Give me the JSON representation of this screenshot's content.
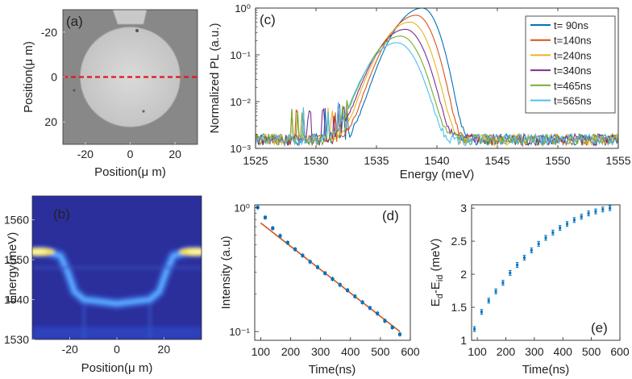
{
  "colors": {
    "axis": "#262626",
    "dashed_line": "#e8141b",
    "fit_line": "#d95319",
    "marker": "#0072bd",
    "micro_bg": "#8a8a8a",
    "micro_disk": "#d0d0d0",
    "heat_bg": "#2a2f9a",
    "heat_band": "#5aa8ff",
    "heat_peak": "#f5e33a"
  },
  "chart_data": [
    {
      "id": "a",
      "type": "image",
      "panel_label": "(a)",
      "title": "",
      "xlabel": "Position(μ m)",
      "ylabel": "Position(μ m)",
      "xlim": [
        -30,
        30
      ],
      "ylim": [
        -30,
        30
      ],
      "xticks": [
        "-20",
        "0",
        "20"
      ],
      "yticks": [
        "-20",
        "0",
        "20"
      ],
      "annotation": "dashed line at position 0",
      "disk_center": [
        0,
        0
      ],
      "disk_radius": 22
    },
    {
      "id": "b",
      "type": "heatmap",
      "panel_label": "(b)",
      "xlabel": "Position(μ m)",
      "ylabel": "Energy(meV)",
      "xlim": [
        -36,
        36
      ],
      "ylim": [
        1530,
        1566
      ],
      "xticks": [
        "-20",
        "0",
        "20"
      ],
      "yticks": [
        "1530",
        "1540",
        "1550",
        "1560"
      ],
      "ridge": {
        "positions": [
          -36,
          -30,
          -24,
          -21,
          -18,
          -14,
          0,
          14,
          18,
          21,
          24,
          30,
          36
        ],
        "energies": [
          1552,
          1552,
          1551,
          1547,
          1542,
          1540,
          1539,
          1540,
          1542,
          1547,
          1551,
          1552,
          1552
        ]
      }
    },
    {
      "id": "c",
      "type": "line",
      "panel_label": "(c)",
      "xlabel": "Energy (meV)",
      "ylabel": "Normalized PL (a.u.)",
      "yscale": "log",
      "xlim": [
        1525,
        1555
      ],
      "ylim": [
        0.001,
        1
      ],
      "xticks": [
        "1525",
        "1530",
        "1535",
        "1540",
        "1545",
        "1550",
        "1555"
      ],
      "yticks": [
        "10⁰",
        "10⁻¹",
        "10⁻²",
        "10⁻³"
      ],
      "legend_position": "top-right",
      "series": [
        {
          "name": "t= 90ns",
          "color": "#0072bd",
          "peak_energy": 1538.8,
          "peak_value": 1.0
        },
        {
          "name": "t=140ns",
          "color": "#d95319",
          "peak_energy": 1538.3,
          "peak_value": 0.7
        },
        {
          "name": "t=240ns",
          "color": "#edb120",
          "peak_energy": 1537.8,
          "peak_value": 0.5
        },
        {
          "name": "t=340ns",
          "color": "#7e2f8e",
          "peak_energy": 1537.4,
          "peak_value": 0.35
        },
        {
          "name": "t=465ns",
          "color": "#77ac30",
          "peak_energy": 1537.0,
          "peak_value": 0.25
        },
        {
          "name": "t=565ns",
          "color": "#4dbeee",
          "peak_energy": 1536.7,
          "peak_value": 0.18
        }
      ]
    },
    {
      "id": "d",
      "type": "scatter",
      "panel_label": "(d)",
      "xlabel": "Time(ns)",
      "ylabel": "Intensity (a.u)",
      "yscale": "log",
      "xlim": [
        80,
        600
      ],
      "ylim": [
        0.085,
        1.05
      ],
      "xticks": [
        "100",
        "200",
        "300",
        "400",
        "500",
        "600"
      ],
      "yticks": [
        "10⁰",
        "10⁻¹"
      ],
      "x": [
        90,
        115,
        140,
        165,
        190,
        215,
        240,
        265,
        290,
        315,
        340,
        365,
        390,
        415,
        440,
        465,
        490,
        515,
        540,
        565
      ],
      "y": [
        1.0,
        0.83,
        0.68,
        0.59,
        0.52,
        0.46,
        0.41,
        0.365,
        0.33,
        0.295,
        0.265,
        0.238,
        0.215,
        0.192,
        0.172,
        0.155,
        0.14,
        0.122,
        0.108,
        0.095
      ],
      "fit": {
        "x": [
          100,
          565
        ],
        "y": [
          0.75,
          0.1
        ]
      }
    },
    {
      "id": "e",
      "type": "scatter",
      "panel_label": "(e)",
      "xlabel": "Time(ns)",
      "ylabel": "E_d-E_id (meV)",
      "ylabel_main": "E",
      "ylabel_sub1": "d",
      "ylabel_mid": "-E",
      "ylabel_sub2": "id",
      "ylabel_unit": " (meV)",
      "xlim": [
        80,
        600
      ],
      "ylim": [
        1,
        3.05
      ],
      "xticks": [
        "100",
        "200",
        "300",
        "400",
        "500",
        "600"
      ],
      "yticks": [
        "1",
        "1.5",
        "2",
        "2.5",
        "3"
      ],
      "x": [
        90,
        115,
        140,
        165,
        190,
        215,
        240,
        265,
        290,
        315,
        340,
        365,
        390,
        415,
        440,
        465,
        490,
        515,
        540,
        565
      ],
      "y": [
        1.17,
        1.43,
        1.6,
        1.74,
        1.87,
        2.02,
        2.14,
        2.25,
        2.36,
        2.46,
        2.55,
        2.63,
        2.7,
        2.76,
        2.82,
        2.87,
        2.92,
        2.95,
        2.98,
        3.0
      ]
    }
  ]
}
